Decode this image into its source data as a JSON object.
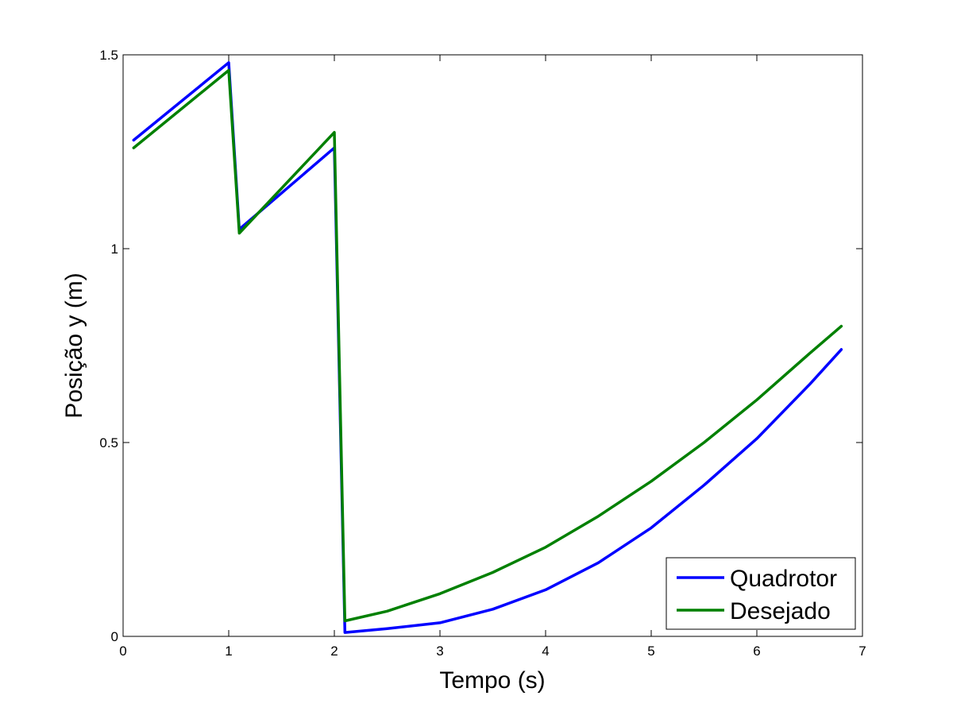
{
  "chart_data": {
    "type": "line",
    "title": "",
    "xlabel": "Tempo (s)",
    "ylabel": "Posição y (m)",
    "xlim": [
      0,
      7
    ],
    "ylim": [
      0,
      1.5
    ],
    "xticks": [
      0,
      1,
      2,
      3,
      4,
      5,
      6,
      7
    ],
    "xtick_labels": [
      "0",
      "1",
      "2",
      "3",
      "4",
      "5",
      "6",
      "7"
    ],
    "yticks": [
      0,
      0.5,
      1,
      1.5
    ],
    "ytick_labels": [
      "0",
      "0.5",
      "1",
      "1.5"
    ],
    "grid": false,
    "legend_position": "bottom-right",
    "series": [
      {
        "name": "Quadrotor",
        "color": "#0000ff",
        "x": [
          0.1,
          1.0,
          1.1,
          2.0,
          2.1,
          2.5,
          3.0,
          3.5,
          4.0,
          4.5,
          5.0,
          5.5,
          6.0,
          6.5,
          6.8
        ],
        "y": [
          1.28,
          1.48,
          1.05,
          1.26,
          0.01,
          0.02,
          0.035,
          0.07,
          0.12,
          0.19,
          0.28,
          0.39,
          0.51,
          0.65,
          0.74
        ]
      },
      {
        "name": "Desejado",
        "color": "#008000",
        "x": [
          0.1,
          1.0,
          1.1,
          2.0,
          2.1,
          2.5,
          3.0,
          3.5,
          4.0,
          4.5,
          5.0,
          5.5,
          6.0,
          6.5,
          6.8
        ],
        "y": [
          1.26,
          1.46,
          1.04,
          1.3,
          0.04,
          0.065,
          0.11,
          0.165,
          0.23,
          0.31,
          0.4,
          0.5,
          0.61,
          0.73,
          0.8
        ]
      }
    ]
  }
}
